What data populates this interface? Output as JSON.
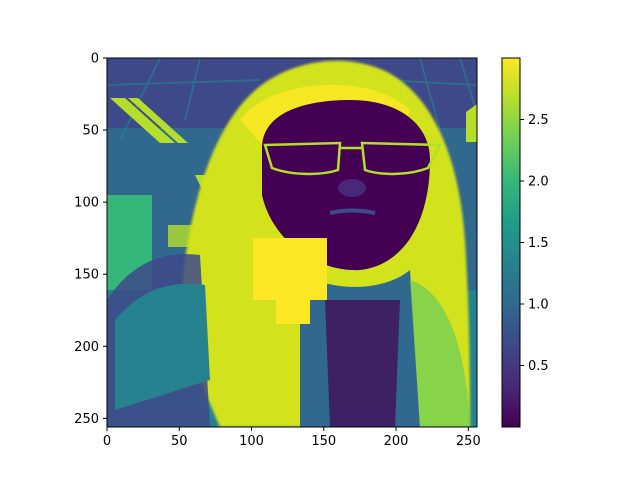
{
  "chart_data": {
    "type": "heatmap",
    "title": "",
    "xlabel": "",
    "ylabel": "",
    "image_size": [
      256,
      256
    ],
    "xlim": [
      0,
      256
    ],
    "ylim": [
      256,
      0
    ],
    "xticks": [
      0,
      50,
      100,
      150,
      200,
      250
    ],
    "yticks": [
      0,
      50,
      100,
      150,
      200,
      250
    ],
    "colormap": "viridis",
    "colorbar": {
      "range": [
        0.0,
        3.0
      ],
      "ticks": [
        0.5,
        1.0,
        1.5,
        2.0,
        2.5
      ],
      "tick_labels": [
        "0.5",
        "1.0",
        "1.5",
        "2.0",
        "2.5"
      ]
    },
    "grid": false,
    "content_description": "A viridis-colormap rendering of a portrait photo. Long bright-yellow hair frames a dark purple face with glasses; striped ceiling lights in the upper-left. A solid yellow occlusion block (max value) covers the area roughly x 100–152, y 125–183.",
    "occlusion_value": 3.0
  },
  "colors": {
    "viridis_stops": [
      "#440154",
      "#482878",
      "#3e4989",
      "#31688e",
      "#26828e",
      "#1f9e89",
      "#35b779",
      "#6ece58",
      "#b5de2b",
      "#fde725"
    ]
  }
}
